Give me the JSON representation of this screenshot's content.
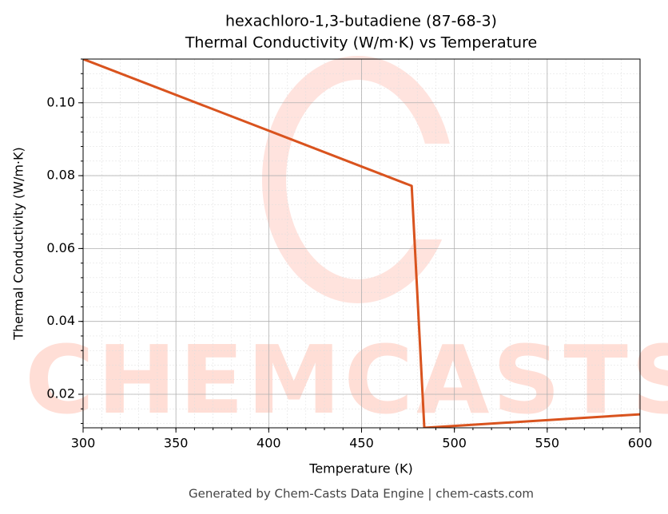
{
  "chart_data": {
    "type": "line",
    "title": "hexachloro-1,3-butadiene (87-68-3)",
    "subtitle": "Thermal Conductivity (W/m·K) vs Temperature",
    "xlabel": "Temperature (K)",
    "ylabel": "Thermal Conductivity (W/m·K)",
    "x": [
      300,
      477,
      483.8,
      600
    ],
    "values": [
      0.112,
      0.0772,
      0.0108,
      0.0145
    ],
    "color": "#d9531e",
    "xlim": [
      300,
      600
    ],
    "ylim": [
      0.0108,
      0.112
    ],
    "xticks": [
      300,
      350,
      400,
      450,
      500,
      550,
      600
    ],
    "yticks": [
      0.02,
      0.04,
      0.06,
      0.08,
      {
        "value": 0.1,
        "label": "0.10"
      }
    ],
    "grid": true,
    "minor_grid": true,
    "watermark": "CHEMCASTS",
    "footer": "Generated by Chem-Casts Data Engine | chem-casts.com"
  }
}
